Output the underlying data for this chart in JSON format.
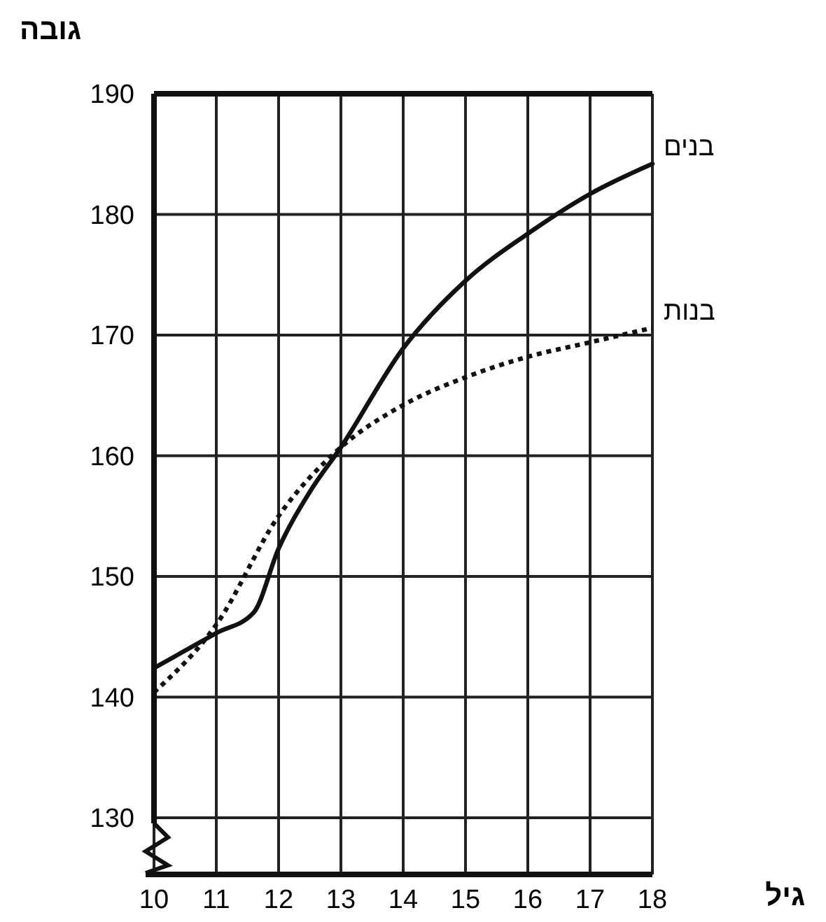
{
  "chart_data": {
    "type": "line",
    "xlabel": "גיל",
    "ylabel": "גובה",
    "x": [
      10,
      11,
      11.6,
      12,
      12.5,
      13,
      14,
      15,
      16,
      17,
      18
    ],
    "series": [
      {
        "name": "בנים",
        "color": "#111111",
        "line_style": "solid",
        "values": [
          142.4,
          145.3,
          147,
          152.3,
          157,
          160.7,
          168.9,
          174.5,
          178.4,
          181.7,
          184.2
        ]
      },
      {
        "name": "בנות",
        "color": "#111111",
        "line_style": "dotted",
        "x": [
          10,
          11,
          12,
          13,
          14,
          15,
          16,
          17,
          18
        ],
        "values": [
          140.4,
          146,
          155,
          160.7,
          164.2,
          166.5,
          168.2,
          169.4,
          170.6
        ]
      }
    ],
    "xlim": [
      10,
      18
    ],
    "ylim": [
      125.3,
      190
    ],
    "xticks": [
      10,
      11,
      12,
      13,
      14,
      15,
      16,
      17,
      18
    ],
    "yticks": [
      130,
      140,
      150,
      160,
      170,
      180,
      190
    ],
    "grid": true,
    "legend": "right",
    "marker": "none"
  }
}
